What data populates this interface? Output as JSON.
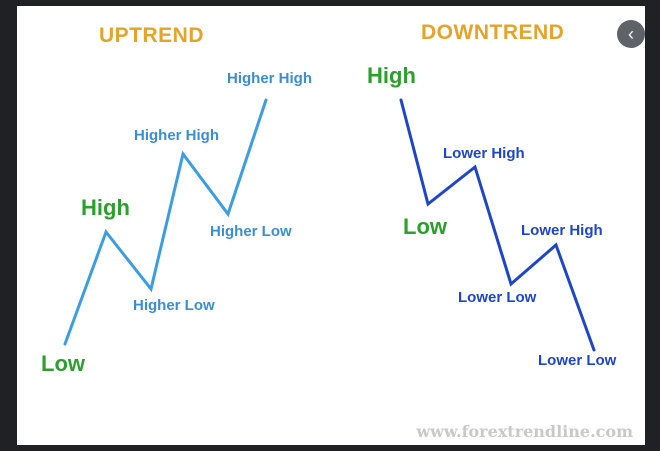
{
  "colors": {
    "title": "#e6a329",
    "uptrend_line": "#3a9ee0",
    "uptrend_text": "#3a8fd1",
    "downtrend_line": "#1e46c8",
    "downtrend_text": "#1e46c8",
    "green": "#2ca02c",
    "watermark": "#c9c9c9"
  },
  "uptrend": {
    "title": "UPTREND",
    "labels": {
      "low": "Low",
      "high": "High",
      "higher_low_1": "Higher Low",
      "higher_high_1": "Higher High",
      "higher_low_2": "Higher Low",
      "higher_high_2": "Higher High"
    }
  },
  "downtrend": {
    "title": "DOWNTREND",
    "labels": {
      "high": "High",
      "low": "Low",
      "lower_high_1": "Lower High",
      "lower_low_1": "Lower Low",
      "lower_high_2": "Lower High",
      "lower_low_2": "Lower Low"
    }
  },
  "watermark": "www.forextrendline.com",
  "close_icon": "close-icon"
}
